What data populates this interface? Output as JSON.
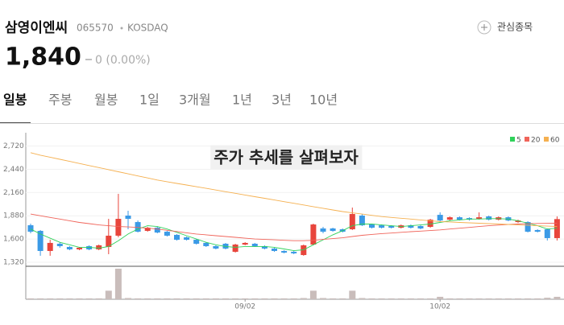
{
  "header": {
    "name": "삼영이엔씨",
    "code": "065570",
    "market": "KOSDAQ",
    "watch": "관심종목"
  },
  "price": {
    "value": "1,840",
    "change": "0 (0.00%)"
  },
  "tabs": [
    "일봉",
    "주봉",
    "월봉",
    "1일",
    "3개월",
    "1년",
    "3년",
    "10년"
  ],
  "active_tab": 0,
  "chart_data": {
    "type": "candlestick",
    "title": "주가 추세를 살펴보자",
    "categories": [
      null,
      null,
      null,
      null,
      null,
      null,
      null,
      null,
      null,
      null,
      null,
      null,
      null,
      null,
      null,
      null,
      null,
      null,
      null,
      null,
      null,
      null,
      "09/02",
      null,
      null,
      null,
      null,
      null,
      null,
      null,
      null,
      null,
      null,
      null,
      null,
      null,
      null,
      null,
      null,
      null,
      null,
      null,
      "10/02",
      null,
      null,
      null,
      null,
      null,
      null,
      null,
      null,
      null,
      null,
      null,
      null
    ],
    "open": [
      1766,
      1698,
      1456,
      1543,
      1504,
      1475,
      1514,
      1475,
      1504,
      1640,
      1882,
      1804,
      1698,
      1736,
      1688,
      1650,
      1620,
      1591,
      1553,
      1514,
      1543,
      1446,
      1533,
      1543,
      1514,
      1485,
      1456,
      1446,
      1407,
      1533,
      1727,
      1727,
      1717,
      1717,
      1882,
      1775,
      1765,
      1756,
      1736,
      1765,
      1756,
      1746,
      1891,
      1833,
      1862,
      1852,
      1843,
      1872,
      1833,
      1862,
      1804,
      1804,
      1708,
      1717,
      1611
    ],
    "high": [
      1785,
      1708,
      1591,
      1562,
      1514,
      1504,
      1524,
      1533,
      1843,
      2144,
      1940,
      1823,
      1746,
      1746,
      1698,
      1659,
      1630,
      1601,
      1562,
      1524,
      1553,
      1543,
      1562,
      1553,
      1524,
      1495,
      1465,
      1456,
      1533,
      1785,
      1746,
      1736,
      1727,
      1979,
      1901,
      1785,
      1775,
      1765,
      1775,
      1775,
      1765,
      1843,
      1921,
      1872,
      1872,
      1862,
      1921,
      1882,
      1872,
      1872,
      1833,
      1814,
      1717,
      1727,
      1872
    ],
    "low": [
      1669,
      1398,
      1398,
      1495,
      1465,
      1465,
      1465,
      1465,
      1417,
      1620,
      1717,
      1679,
      1688,
      1669,
      1630,
      1582,
      1582,
      1533,
      1504,
      1475,
      1475,
      1436,
      1524,
      1504,
      1475,
      1446,
      1427,
      1417,
      1398,
      1524,
      1669,
      1688,
      1679,
      1708,
      1756,
      1727,
      1727,
      1727,
      1727,
      1727,
      1717,
      1736,
      1814,
      1823,
      1823,
      1823,
      1833,
      1823,
      1823,
      1814,
      1794,
      1679,
      1679,
      1582,
      1582
    ],
    "close": [
      1688,
      1456,
      1553,
      1514,
      1475,
      1495,
      1475,
      1524,
      1640,
      1843,
      1843,
      1688,
      1736,
      1678,
      1640,
      1591,
      1591,
      1543,
      1514,
      1485,
      1485,
      1533,
      1553,
      1514,
      1485,
      1456,
      1436,
      1427,
      1524,
      1775,
      1688,
      1698,
      1688,
      1901,
      1765,
      1736,
      1736,
      1736,
      1765,
      1736,
      1727,
      1833,
      1823,
      1862,
      1833,
      1833,
      1862,
      1833,
      1862,
      1823,
      1823,
      1688,
      1688,
      1611,
      1840
    ],
    "volume": [
      3,
      3,
      3,
      3,
      3,
      3,
      3,
      3,
      28,
      100,
      4,
      3,
      3,
      3,
      3,
      3,
      3,
      3,
      3,
      3,
      3,
      3,
      3,
      3,
      3,
      3,
      3,
      3,
      4,
      28,
      4,
      3,
      3,
      28,
      4,
      3,
      3,
      3,
      3,
      3,
      3,
      3,
      8,
      3,
      3,
      3,
      3,
      3,
      3,
      3,
      3,
      3,
      3,
      5,
      8
    ],
    "ylim": [
      1320,
      2880
    ],
    "yticks": [
      {
        "value": 1320,
        "label": "1,320"
      },
      {
        "value": 1600,
        "label": "1,600"
      },
      {
        "value": 1880,
        "label": "1,880"
      },
      {
        "value": 2160,
        "label": "2,160"
      },
      {
        "value": 2440,
        "label": "2,440"
      },
      {
        "value": 2720,
        "label": "2,720"
      }
    ],
    "y2lim": [
      0,
      100
    ],
    "up_color": "#e8453c",
    "down_color": "#3b9ae6",
    "volume_color": "#c9bdbb",
    "grid": true,
    "series": [
      {
        "name": "5",
        "color": "#2fd15a",
        "values": [
          1720,
          1660,
          1610,
          1560,
          1530,
          1500,
          1500,
          1490,
          1510,
          1580,
          1660,
          1720,
          1760,
          1750,
          1720,
          1680,
          1640,
          1600,
          1560,
          1530,
          1510,
          1500,
          1510,
          1510,
          1510,
          1500,
          1480,
          1460,
          1470,
          1530,
          1590,
          1650,
          1700,
          1760,
          1780,
          1780,
          1770,
          1760,
          1750,
          1760,
          1770,
          1780,
          1800,
          1820,
          1830,
          1840,
          1840,
          1845,
          1845,
          1840,
          1820,
          1790,
          1760,
          1720,
          1730
        ]
      },
      {
        "name": "20",
        "color": "#f0645a",
        "values": [
          1900,
          1880,
          1860,
          1840,
          1820,
          1800,
          1785,
          1770,
          1760,
          1750,
          1745,
          1740,
          1730,
          1720,
          1705,
          1690,
          1675,
          1660,
          1650,
          1640,
          1630,
          1620,
          1610,
          1600,
          1595,
          1590,
          1585,
          1580,
          1580,
          1585,
          1595,
          1605,
          1615,
          1630,
          1645,
          1655,
          1665,
          1672,
          1680,
          1688,
          1695,
          1702,
          1710,
          1720,
          1730,
          1740,
          1750,
          1760,
          1768,
          1775,
          1780,
          1784,
          1787,
          1789,
          1790
        ]
      },
      {
        "name": "60",
        "color": "#f5b050",
        "values": [
          2640,
          2610,
          2585,
          2560,
          2535,
          2510,
          2485,
          2460,
          2435,
          2410,
          2385,
          2360,
          2335,
          2310,
          2290,
          2270,
          2250,
          2230,
          2210,
          2190,
          2170,
          2150,
          2130,
          2110,
          2090,
          2070,
          2050,
          2030,
          2010,
          1990,
          1970,
          1950,
          1930,
          1915,
          1900,
          1885,
          1870,
          1860,
          1850,
          1840,
          1830,
          1820,
          1810,
          1805,
          1800,
          1795,
          1790,
          1785,
          1780,
          1775,
          1770,
          1765,
          1760,
          1755,
          1750
        ]
      }
    ]
  }
}
